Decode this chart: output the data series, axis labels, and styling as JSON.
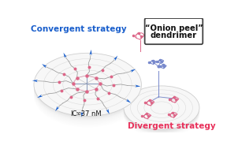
{
  "bg_color": "#ffffff",
  "convergent_label": "Convergent strategy",
  "divergent_label": "Divergent strategy",
  "onion_label_line1": "“Onion peel”",
  "onion_label_line2": "dendrimer",
  "convergent_color": "#1a5fcc",
  "divergent_color": "#e8305a",
  "onion_box_edge": "#444444",
  "arrow_color": "#1a5fcc",
  "disk_face": "#f0f0f0",
  "disk_edge": "#d0d0d0",
  "disk_side": "#d8d8d8",
  "link_gray": "#999999",
  "link_blue": "#8899bb",
  "link_pink": "#cc6688",
  "node_pink": "#dd6688",
  "node_blue": "#8899cc",
  "mol_pink": "#dd6688",
  "mol_blue": "#7788cc"
}
